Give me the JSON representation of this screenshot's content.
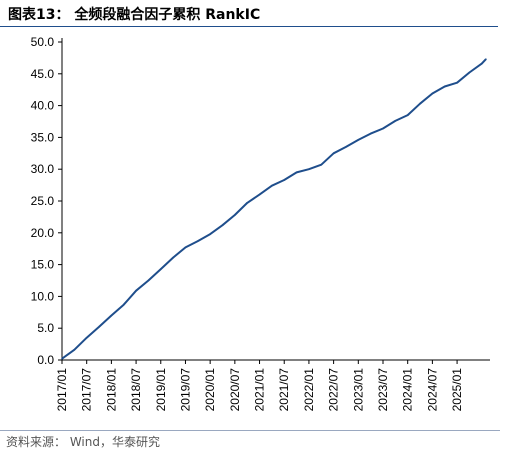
{
  "title": "图表13： 全频段融合因子累积 RankIC",
  "source": "资料来源： Wind，华泰研究",
  "colors": {
    "series": "#1f4e8c",
    "axis": "#000000",
    "title_rule": "#1f4e8c"
  },
  "chart_data": {
    "type": "line",
    "title": "图表13： 全频段融合因子累积 RankIC",
    "xlabel": "",
    "ylabel": "",
    "ylim": [
      0,
      50
    ],
    "yticks": [
      "0.0",
      "5.0",
      "10.0",
      "15.0",
      "20.0",
      "25.0",
      "30.0",
      "35.0",
      "40.0",
      "45.0",
      "50.0"
    ],
    "xlim": [
      "2017-01",
      "2025-09"
    ],
    "xticks": [
      "2017/01",
      "2017/07",
      "2018/01",
      "2018/07",
      "2019/01",
      "2019/07",
      "2020/01",
      "2020/07",
      "2021/01",
      "2021/07",
      "2022/01",
      "2022/07",
      "2023/01",
      "2023/07",
      "2024/01",
      "2024/07",
      "2025/01"
    ],
    "grid": false,
    "legend": "none",
    "series": [
      {
        "x": [
          "2017-01",
          "2017-04",
          "2017-07",
          "2017-10",
          "2018-01",
          "2018-04",
          "2018-07",
          "2018-10",
          "2019-01",
          "2019-04",
          "2019-07",
          "2019-10",
          "2020-01",
          "2020-04",
          "2020-07",
          "2020-10",
          "2021-01",
          "2021-04",
          "2021-07",
          "2021-10",
          "2022-01",
          "2022-04",
          "2022-07",
          "2022-10",
          "2023-01",
          "2023-04",
          "2023-07",
          "2023-10",
          "2024-01",
          "2024-04",
          "2024-07",
          "2024-10",
          "2025-01",
          "2025-04",
          "2025-07",
          "2025-08"
        ],
        "values": [
          0.2,
          1.6,
          3.5,
          5.2,
          7.0,
          8.7,
          10.9,
          12.5,
          14.3,
          16.1,
          17.7,
          18.7,
          19.8,
          21.2,
          22.8,
          24.7,
          26.0,
          27.4,
          28.3,
          29.5,
          30.0,
          30.7,
          32.5,
          33.5,
          34.6,
          35.6,
          36.4,
          37.6,
          38.5,
          40.3,
          41.9,
          43.0,
          43.6,
          45.2,
          46.6,
          47.3
        ]
      }
    ]
  }
}
